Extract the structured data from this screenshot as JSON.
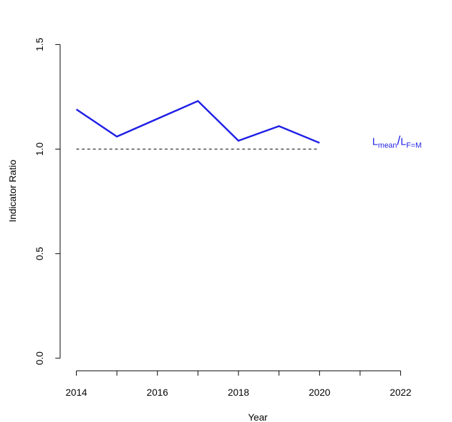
{
  "chart_data": {
    "type": "line",
    "xlabel": "Year",
    "ylabel": "Indicator Ratio",
    "xlim": [
      2013.6,
      2023.2
    ],
    "ylim": [
      -0.06,
      1.66
    ],
    "x_ticks": [
      2014,
      2015,
      2016,
      2017,
      2018,
      2019,
      2020,
      2021,
      2022
    ],
    "x_tick_labels": [
      "2014",
      "2016",
      "2018",
      "2020",
      "2022"
    ],
    "y_ticks": [
      0.0,
      0.5,
      1.0,
      1.5
    ],
    "y_tick_labels": [
      "0.0",
      "0.5",
      "1.0",
      "1.5"
    ],
    "grid": false,
    "series": [
      {
        "name": "Lmean/LF=M",
        "color": "#1f1fe6",
        "x": [
          2014,
          2015,
          2016,
          2017,
          2018,
          2019,
          2020
        ],
        "y": [
          1.19,
          1.06,
          1.145,
          1.23,
          1.04,
          1.11,
          1.03
        ]
      }
    ],
    "reference_line": {
      "y": 1.0,
      "x": [
        2014,
        2020
      ],
      "style": "dashed",
      "color": "#000000"
    },
    "annotation": {
      "main": "L",
      "sub1": "mean",
      "sep": "/",
      "main2": "L",
      "sub2": "F=M",
      "x": 2021.3,
      "y": 1.02,
      "color": "#1f1fe6"
    }
  }
}
